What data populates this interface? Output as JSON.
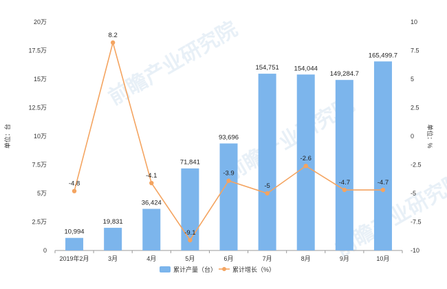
{
  "chart_data": {
    "type": "bar+line",
    "categories": [
      "2019年2月",
      "3月",
      "4月",
      "5月",
      "6月",
      "7月",
      "8月",
      "9月",
      "10月"
    ],
    "series": [
      {
        "name": "累计产量（台）",
        "type": "bar",
        "axis": "left",
        "color": "#7cb5ec",
        "values": [
          10994,
          19831,
          36424,
          71841,
          93696,
          154751,
          154044,
          149284.7,
          165499.7
        ],
        "labels": [
          "10,994",
          "19,831",
          "36,424",
          "71,841",
          "93,696",
          "154,751",
          "154,044",
          "149,284.7",
          "165,499.7"
        ]
      },
      {
        "name": "累计增长（%）",
        "type": "line",
        "axis": "right",
        "color": "#f4a460",
        "values": [
          -4.8,
          8.2,
          -4.1,
          -9.1,
          -3.9,
          -5,
          -2.6,
          -4.7,
          -4.7
        ],
        "labels": [
          "-4.8",
          "8.2",
          "-4.1",
          "-9.1",
          "-3.9",
          "-5",
          "-2.6",
          "-4.7",
          "-4.7"
        ]
      }
    ],
    "left_axis": {
      "label": "单位：台",
      "min": 0,
      "max": 200000,
      "step": 25000,
      "tick_labels": [
        "0",
        "2.5万",
        "5万",
        "7.5万",
        "10万",
        "12.5万",
        "15万",
        "17.5万",
        "20万"
      ]
    },
    "right_axis": {
      "label": "单位：%",
      "min": -10,
      "max": 10,
      "step": 2.5,
      "tick_labels": [
        "-10",
        "-7.5",
        "-5",
        "-2.5",
        "0",
        "2.5",
        "5",
        "7.5",
        "10"
      ]
    },
    "grid": false,
    "legend_position": "bottom-center",
    "watermark": "前瞻产业研究院"
  }
}
